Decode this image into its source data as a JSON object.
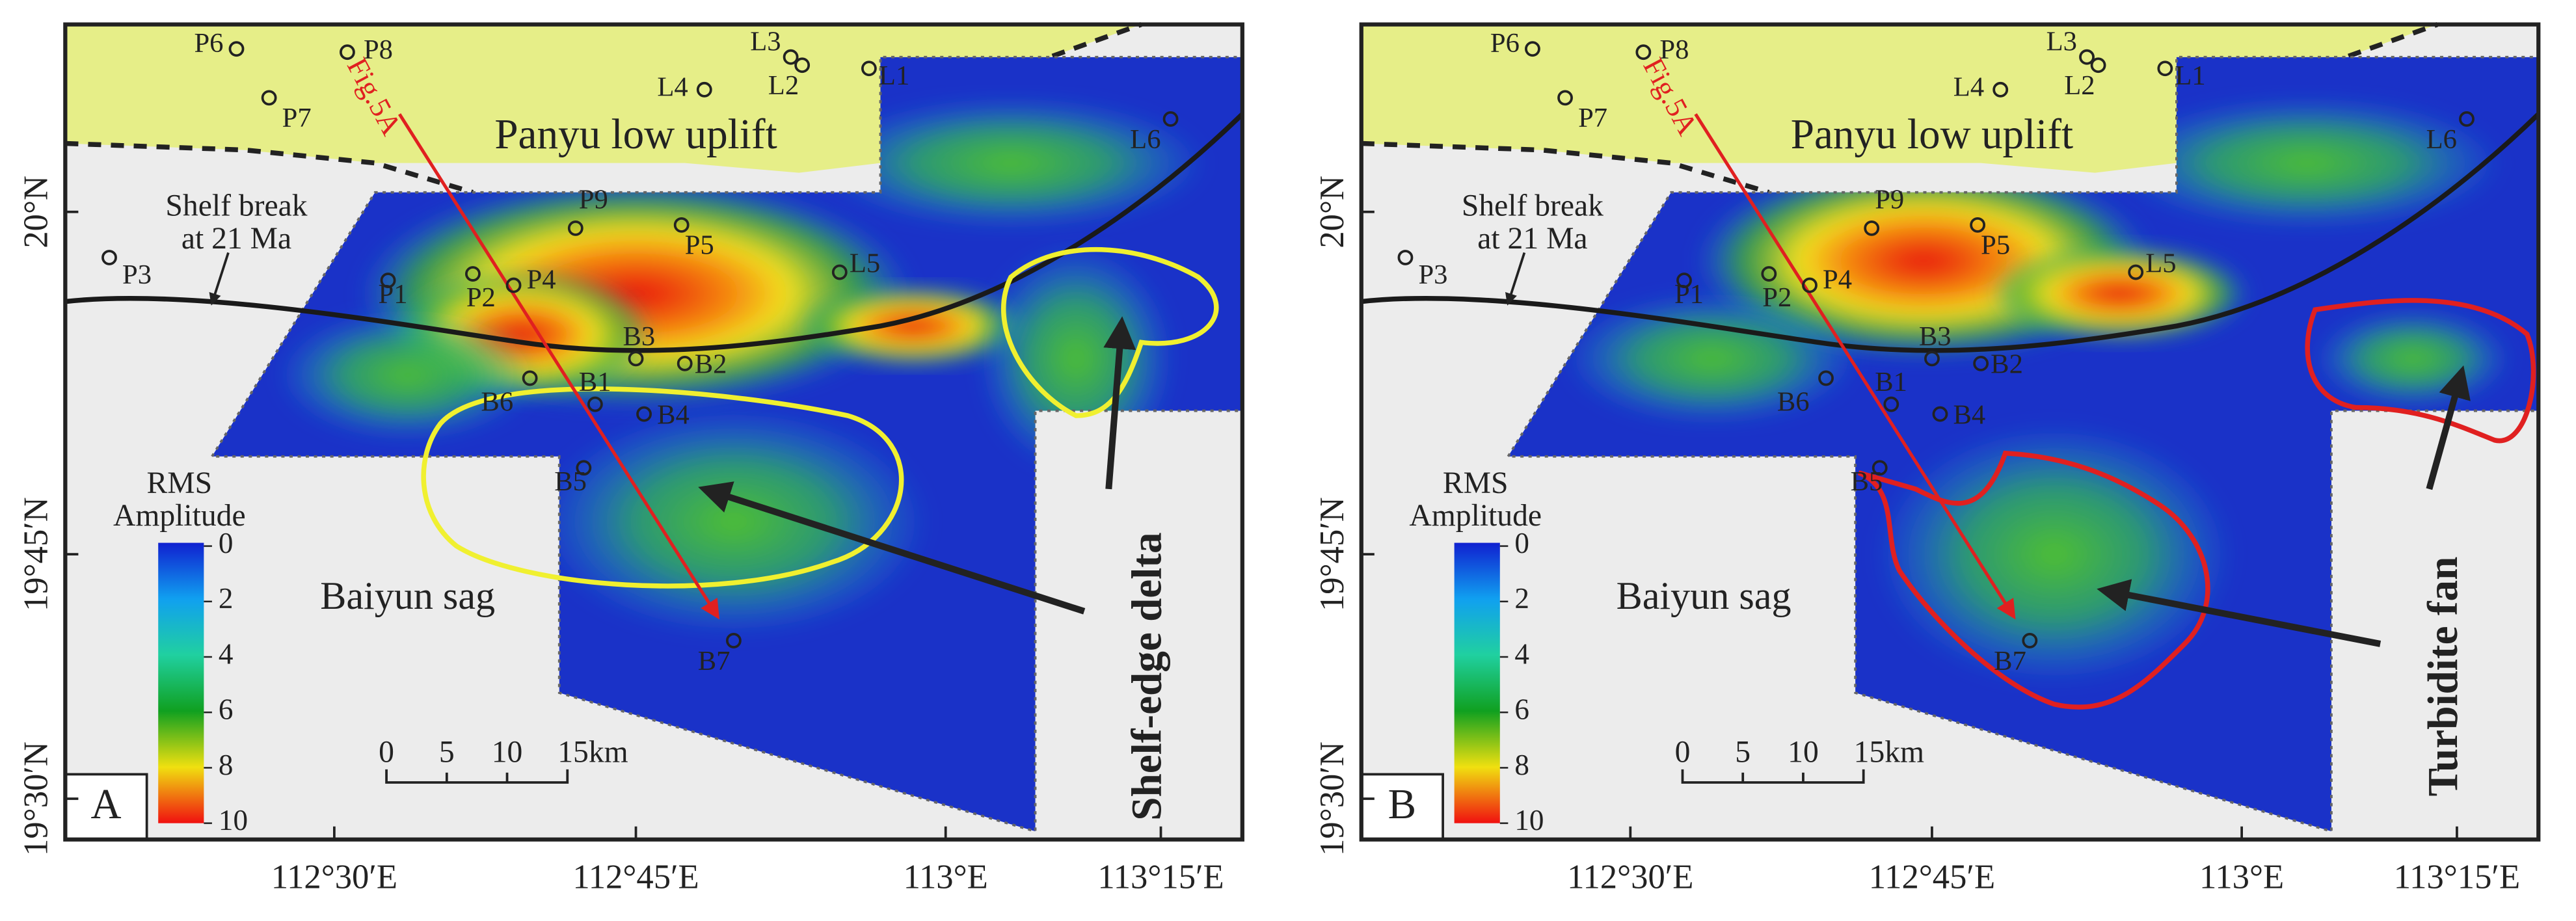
{
  "panels": [
    {
      "label": "A",
      "annotation": "Shelf-edge delta"
    },
    {
      "label": "B",
      "annotation": "Turbidite fan"
    }
  ],
  "wells": [
    "P6",
    "P8",
    "P7",
    "L4",
    "L3",
    "L2",
    "L1",
    "L6",
    "P9",
    "P5",
    "L5",
    "P3",
    "P1",
    "P2",
    "P4",
    "B3",
    "B2",
    "B6",
    "B1",
    "B5",
    "B4",
    "B7"
  ],
  "places": {
    "uplift": "Panyu low uplift",
    "sag": "Baiyun sag",
    "shelf_break": [
      "Shelf break",
      "at 21 Ma"
    ],
    "section": "Fig.5A"
  },
  "longitudes": [
    "112°30′E",
    "112°45′E",
    "113°E",
    "113°15′E"
  ],
  "latitudes": [
    "20°N",
    "19°45′N",
    "19°30′N"
  ],
  "colorbar": {
    "title": [
      "RMS",
      "Amplitude"
    ],
    "ticks": [
      0,
      2,
      4,
      6,
      8,
      10
    ]
  },
  "scale_bar": [
    "0",
    "5",
    "10",
    "15km"
  ]
}
